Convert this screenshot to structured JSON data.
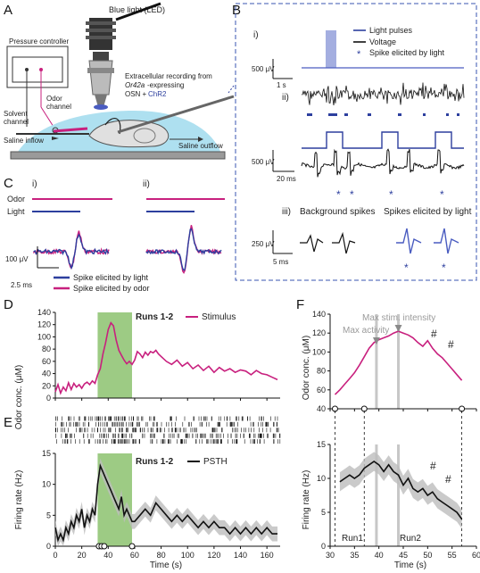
{
  "panel_letters": {
    "A": "A",
    "B": "B",
    "C": "C",
    "D": "D",
    "E": "E",
    "F": "F"
  },
  "panelA": {
    "led": "Blue light (LED)",
    "pressure": "Pressure controller",
    "odor_channel_1": "Odor",
    "odor_channel_2": "channel",
    "solvent_1": "Solvent",
    "solvent_2": "channel",
    "rec_1": "Extracellular recording from",
    "rec_2a": "Or42a",
    "rec_2b": "-expressing",
    "rec_3a": "OSN + ",
    "rec_3b": "ChR2",
    "inflow": "Saline inflow",
    "outflow": "Saline outflow"
  },
  "panelB": {
    "i": "i)",
    "ii": "ii)",
    "iii": "iii)",
    "legend": {
      "light": "Light pulses",
      "voltage": "Voltage",
      "spike": "Spike elicited by light"
    },
    "scale_i_v": "500 μV",
    "scale_i_t": "1 s",
    "scale_ii_v": "500 μV",
    "scale_ii_t": "20 ms",
    "scale_iii_v": "250 μV",
    "scale_iii_t": "5 ms",
    "bg_title": "Background spikes",
    "light_title": "Spikes elicited by light",
    "star": "*"
  },
  "panelC": {
    "i": "i)",
    "ii": "ii)",
    "odor": "Odor",
    "light": "Light",
    "scale_v": "100 μV",
    "scale_t": "2.5 ms",
    "leg_light": "Spike elicited by light",
    "leg_odor": "Spike elicited by odor"
  },
  "colors": {
    "magenta": "#c8207e",
    "blue": "#2d3f9e",
    "light_blue": "#4a5cc0",
    "green": "#8cc26e",
    "gray": "#9a9a9a"
  },
  "panelD": {
    "runs": "Runs 1-2",
    "legend": "Stimulus",
    "ylabel": "Odor conc. (μM)"
  },
  "panelE": {
    "runs": "Runs 1-2",
    "legend": "PSTH",
    "ylabel": "Firing rate (Hz)",
    "xlabel": "Time (s)"
  },
  "panelF": {
    "ylabel_top": "Odor conc. (μM)",
    "ylabel_bot": "Firing rate (Hz)",
    "xlabel": "Time (s)",
    "max_activity": "Max activity",
    "max_stim": "Max stim. intensity",
    "hash": "#",
    "run1": "Run1",
    "run2": "Run2"
  },
  "chart_data": [
    {
      "type": "line",
      "panel": "D",
      "ylabel": "Odor conc. (μM)",
      "xlim": [
        0,
        170
      ],
      "ylim": [
        0,
        140
      ],
      "xticks": [
        0,
        20,
        40,
        60,
        80,
        100,
        120,
        140,
        160
      ],
      "yticks": [
        0,
        20,
        40,
        60,
        80,
        100,
        120,
        140
      ],
      "highlight_x": [
        32,
        58
      ],
      "series": [
        {
          "name": "Stimulus",
          "x": [
            0,
            2,
            4,
            6,
            8,
            10,
            12,
            14,
            16,
            18,
            20,
            22,
            24,
            26,
            28,
            30,
            32,
            34,
            36,
            38,
            40,
            42,
            44,
            46,
            48,
            50,
            52,
            54,
            56,
            58,
            60,
            62,
            64,
            66,
            68,
            70,
            72,
            74,
            76,
            78,
            80,
            84,
            88,
            92,
            96,
            100,
            104,
            108,
            112,
            116,
            120,
            124,
            128,
            132,
            136,
            140,
            144,
            148,
            152,
            156,
            160,
            164,
            168
          ],
          "y": [
            10,
            22,
            8,
            18,
            12,
            25,
            14,
            24,
            18,
            22,
            16,
            23,
            26,
            22,
            28,
            24,
            38,
            48,
            72,
            90,
            112,
            123,
            118,
            95,
            78,
            70,
            62,
            56,
            60,
            55,
            62,
            76,
            72,
            66,
            75,
            70,
            76,
            74,
            78,
            72,
            68,
            60,
            55,
            62,
            52,
            58,
            48,
            54,
            45,
            52,
            42,
            50,
            44,
            48,
            42,
            46,
            44,
            38,
            45,
            40,
            38,
            34,
            30
          ]
        }
      ]
    },
    {
      "type": "line",
      "panel": "E",
      "ylabel": "Firing rate (Hz)",
      "xlabel": "Time (s)",
      "xlim": [
        0,
        170
      ],
      "ylim": [
        0,
        15
      ],
      "xticks": [
        0,
        20,
        40,
        60,
        80,
        100,
        120,
        140,
        160
      ],
      "yticks": [
        0,
        5,
        10,
        15
      ],
      "highlight_x": [
        32,
        58
      ],
      "series": [
        {
          "name": "PSTH",
          "x": [
            0,
            2,
            4,
            6,
            8,
            10,
            12,
            14,
            16,
            18,
            20,
            22,
            24,
            26,
            28,
            30,
            32,
            34,
            36,
            38,
            40,
            42,
            44,
            46,
            48,
            50,
            52,
            54,
            56,
            58,
            60,
            64,
            68,
            72,
            76,
            80,
            84,
            88,
            92,
            96,
            100,
            104,
            108,
            112,
            116,
            120,
            124,
            128,
            132,
            136,
            140,
            144,
            148,
            152,
            156,
            160,
            164,
            168
          ],
          "y": [
            3,
            1,
            2,
            1,
            3,
            2,
            4,
            3,
            5,
            4,
            6,
            3,
            5,
            4,
            6,
            5,
            10,
            13,
            12,
            11,
            10,
            9,
            8,
            7,
            6,
            8,
            5,
            6,
            5,
            4,
            4,
            5,
            6,
            5,
            7,
            6,
            5,
            4,
            5,
            4,
            5,
            4,
            3,
            4,
            3,
            4,
            3,
            3,
            2,
            3,
            2,
            3,
            2,
            3,
            2,
            3,
            2,
            2
          ]
        }
      ]
    },
    {
      "type": "line",
      "panel": "F-top",
      "ylabel": "Odor conc. (μM)",
      "xlim": [
        30,
        60
      ],
      "ylim": [
        40,
        140
      ],
      "xticks": [
        30,
        35,
        40,
        45,
        50,
        55,
        60
      ],
      "yticks": [
        40,
        60,
        80,
        100,
        120,
        140
      ],
      "series": [
        {
          "name": "Stimulus",
          "x": [
            31,
            32,
            33,
            34,
            35,
            36,
            37,
            38,
            39,
            40,
            41,
            42,
            43,
            44,
            45,
            46,
            47,
            48,
            49,
            50,
            51,
            52,
            53,
            54,
            55,
            56,
            57
          ],
          "y": [
            55,
            60,
            66,
            72,
            78,
            86,
            95,
            104,
            110,
            113,
            115,
            117,
            120,
            122,
            120,
            118,
            115,
            110,
            106,
            112,
            104,
            98,
            94,
            88,
            82,
            76,
            70
          ]
        }
      ]
    },
    {
      "type": "line",
      "panel": "F-bottom",
      "ylabel": "Firing rate (Hz)",
      "xlabel": "Time (s)",
      "xlim": [
        30,
        60
      ],
      "ylim": [
        0,
        15
      ],
      "xticks": [
        30,
        35,
        40,
        45,
        50,
        55,
        60
      ],
      "yticks": [
        0,
        5,
        10,
        15
      ],
      "series": [
        {
          "name": "PSTH",
          "x": [
            32,
            33,
            34,
            35,
            36,
            37,
            38,
            39,
            40,
            41,
            42,
            43,
            44,
            45,
            46,
            47,
            48,
            49,
            50,
            51,
            52,
            53,
            54,
            55,
            56,
            57
          ],
          "y": [
            9.5,
            10,
            10.5,
            10,
            10.5,
            11.5,
            12,
            12.5,
            12,
            11,
            12,
            11,
            10.5,
            9,
            10,
            8.5,
            8,
            8.5,
            7.5,
            8,
            7,
            6.5,
            6,
            5.5,
            5,
            4
          ]
        }
      ]
    }
  ]
}
